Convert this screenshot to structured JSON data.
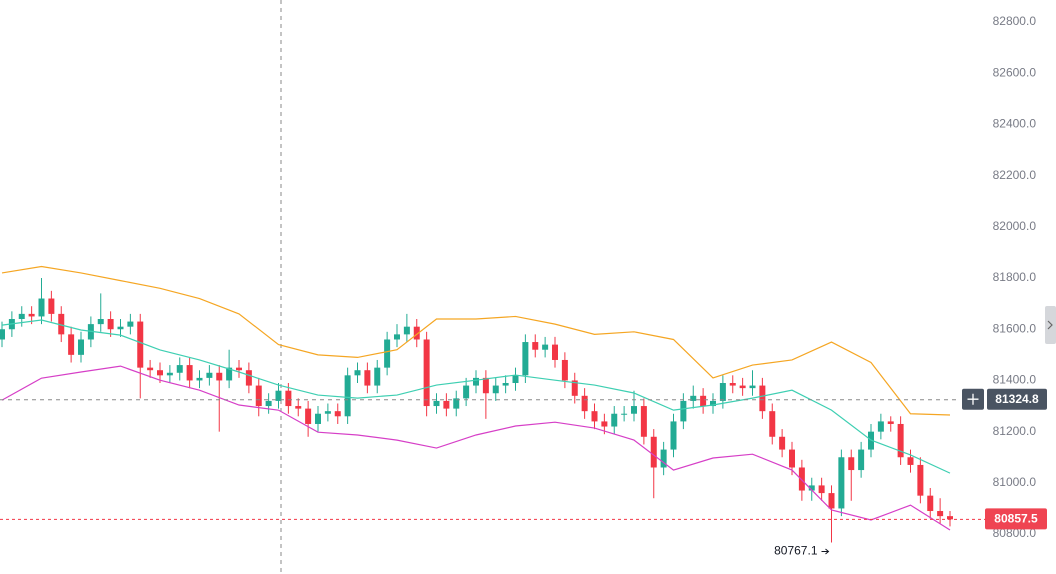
{
  "chart_data": {
    "type": "candlestick",
    "ylim": [
      80644,
      82886
    ],
    "yticks": [
      {
        "value": 80800,
        "label": "80800.0"
      },
      {
        "value": 81000,
        "label": "81000.0"
      },
      {
        "value": 81200,
        "label": "81200.0"
      },
      {
        "value": 81400,
        "label": "81400.0"
      },
      {
        "value": 81600,
        "label": "81600.0"
      },
      {
        "value": 81800,
        "label": "81800.0"
      },
      {
        "value": 82000,
        "label": "82000.0"
      },
      {
        "value": 82200,
        "label": "82200.0"
      },
      {
        "value": 82400,
        "label": "82400.0"
      },
      {
        "value": 82600,
        "label": "82600.0"
      },
      {
        "value": 82800,
        "label": "82800.0"
      }
    ],
    "up_color": "#22ab94",
    "down_color": "#f23645",
    "open": [
      81560,
      81600,
      81640,
      81660,
      81650,
      81720,
      81660,
      81580,
      81500,
      81560,
      81620,
      81640,
      81600,
      81610,
      81630,
      81450,
      81440,
      81420,
      81430,
      81460,
      81400,
      81410,
      81430,
      81400,
      81450,
      81440,
      81380,
      81300,
      81320,
      81360,
      81300,
      81290,
      81230,
      81270,
      81280,
      81260,
      81420,
      81440,
      81380,
      81450,
      81560,
      81580,
      81610,
      81560,
      81300,
      81320,
      81290,
      81330,
      81380,
      81410,
      81350,
      81380,
      81390,
      81420,
      81550,
      81520,
      81540,
      81480,
      81400,
      81340,
      81280,
      81240,
      81220,
      81270,
      81270,
      81300,
      81180,
      81060,
      81130,
      81240,
      81320,
      81340,
      81300,
      81320,
      81390,
      81380,
      81370,
      81380,
      81280,
      81180,
      81130,
      81060,
      80970,
      80990,
      80960,
      80900,
      81100,
      81050,
      81130,
      81200,
      81240,
      81230,
      81100,
      81070,
      80950,
      80890,
      80870
    ],
    "high": [
      81630,
      81670,
      81690,
      81690,
      81800,
      81750,
      81690,
      81610,
      81590,
      81650,
      81740,
      81670,
      81640,
      81660,
      81660,
      81480,
      81470,
      81460,
      81490,
      81490,
      81440,
      81460,
      81460,
      81520,
      81480,
      81470,
      81410,
      81350,
      81390,
      81390,
      81330,
      81320,
      81300,
      81310,
      81310,
      81450,
      81470,
      81470,
      81480,
      81590,
      81620,
      81660,
      81640,
      81590,
      81350,
      81350,
      81360,
      81410,
      81440,
      81440,
      81410,
      81420,
      81450,
      81580,
      81580,
      81570,
      81570,
      81510,
      81430,
      81370,
      81310,
      81270,
      81300,
      81300,
      81360,
      81330,
      81210,
      81160,
      81270,
      81350,
      81380,
      81370,
      81350,
      81420,
      81420,
      81410,
      81440,
      81410,
      81310,
      81210,
      81160,
      81090,
      81020,
      81020,
      80990,
      81130,
      81130,
      81160,
      81230,
      81270,
      81260,
      81260,
      81130,
      81100,
      80980,
      80940,
      80890
    ],
    "low": [
      81530,
      81570,
      81610,
      81620,
      81620,
      81630,
      81550,
      81470,
      81470,
      81530,
      81590,
      81570,
      81570,
      81580,
      81330,
      81410,
      81390,
      81390,
      81400,
      81370,
      81370,
      81380,
      81200,
      81370,
      81410,
      81350,
      81260,
      81270,
      81290,
      81270,
      81260,
      81180,
      81200,
      81240,
      81230,
      81230,
      81390,
      81350,
      81350,
      81420,
      81530,
      81550,
      81530,
      81260,
      81270,
      81260,
      81260,
      81300,
      81350,
      81250,
      81320,
      81350,
      81360,
      81390,
      81490,
      81490,
      81450,
      81370,
      81310,
      81250,
      81210,
      81190,
      81190,
      81240,
      81240,
      81150,
      80940,
      81030,
      81100,
      81210,
      81290,
      81270,
      81270,
      81290,
      81350,
      81340,
      81340,
      81250,
      81150,
      81100,
      81030,
      80930,
      80930,
      80930,
      80767.1,
      80870,
      80930,
      81020,
      81100,
      81170,
      81200,
      81070,
      81040,
      80920,
      80860,
      80840,
      80830
    ],
    "close": [
      81600,
      81640,
      81660,
      81650,
      81720,
      81660,
      81580,
      81500,
      81560,
      81620,
      81640,
      81600,
      81610,
      81630,
      81450,
      81440,
      81420,
      81430,
      81460,
      81400,
      81410,
      81430,
      81400,
      81450,
      81440,
      81380,
      81300,
      81320,
      81360,
      81300,
      81290,
      81230,
      81270,
      81280,
      81260,
      81420,
      81440,
      81380,
      81450,
      81560,
      81580,
      81610,
      81560,
      81300,
      81320,
      81290,
      81330,
      81380,
      81410,
      81350,
      81380,
      81390,
      81420,
      81550,
      81520,
      81540,
      81480,
      81400,
      81340,
      81280,
      81240,
      81220,
      81270,
      81270,
      81300,
      81180,
      81060,
      81130,
      81240,
      81320,
      81340,
      81300,
      81320,
      81390,
      81380,
      81370,
      81380,
      81280,
      81180,
      81130,
      81060,
      80970,
      80990,
      80960,
      80900,
      81100,
      81050,
      81130,
      81200,
      81240,
      81230,
      81100,
      81070,
      80950,
      80890,
      80870,
      80857.5
    ],
    "band_x": [
      0,
      4,
      8,
      12,
      16,
      20,
      24,
      28,
      32,
      36,
      40,
      44,
      48,
      52,
      56,
      60,
      64,
      68,
      72,
      76,
      80,
      84,
      88,
      92,
      96
    ],
    "bands": [
      {
        "color": "#f5a623",
        "values": [
          81820,
          81845,
          81820,
          81790,
          81760,
          81720,
          81660,
          81540,
          81500,
          81490,
          81520,
          81640,
          81640,
          81650,
          81620,
          81580,
          81590,
          81560,
          81410,
          81460,
          81480,
          81550,
          81470,
          81270,
          81265
        ]
      },
      {
        "color": "#3ecfb2",
        "values": [
          81616,
          81636,
          81597,
          81577,
          81519,
          81480,
          81433,
          81382,
          81343,
          81331,
          81343,
          81382,
          81401,
          81421,
          81401,
          81382,
          81351,
          81284,
          81304,
          81331,
          81362,
          81284,
          81167,
          81109,
          81038
        ]
      },
      {
        "color": "#d63fc7",
        "values": [
          81323,
          81409,
          81433,
          81456,
          81401,
          81362,
          81304,
          81284,
          81198,
          81187,
          81167,
          81136,
          81187,
          81222,
          81237,
          81214,
          81167,
          81050,
          81097,
          81112,
          81050,
          80894,
          80855,
          80913,
          80816
        ]
      }
    ],
    "crosshair_price": 81324.8,
    "last_price": 80857.5,
    "low_label": 80767.1
  }
}
